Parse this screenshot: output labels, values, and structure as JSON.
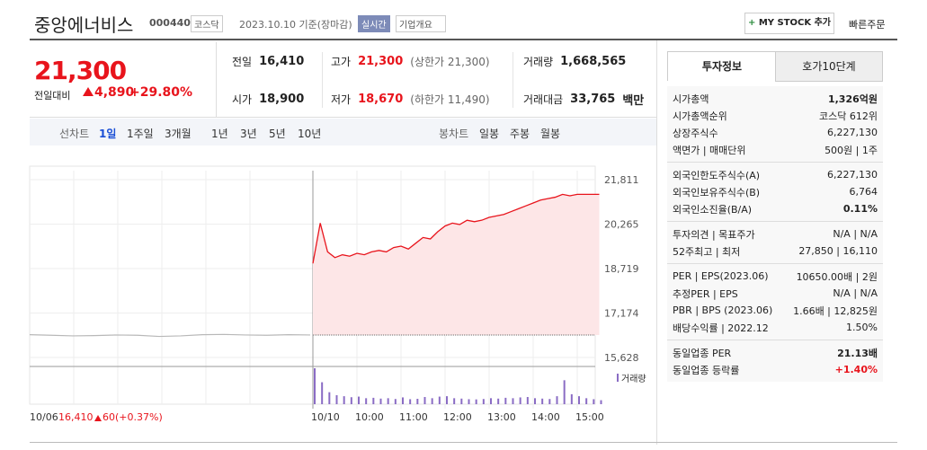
{
  "header": {
    "name": "중앙에너비스",
    "code": "000440",
    "market": "코스닥",
    "date": "2023.10.10 기준(장마감)",
    "realtime": "실시간",
    "company_info": "기업개요",
    "my_stock": "MY STOCK 추가",
    "quick_order": "빠른주문"
  },
  "quote": {
    "price": "21,300",
    "change_label": "전일대비",
    "change": "4,890",
    "change_rate": "+29.80%",
    "stats": [
      {
        "label": "전일",
        "value": "16,410"
      },
      {
        "label": "고가",
        "value": "21,300",
        "extra": "(상한가 21,300)"
      },
      {
        "label": "거래량",
        "value": "1,668,565"
      },
      {
        "label": "시가",
        "value": "18,900"
      },
      {
        "label": "저가",
        "value": "18,670",
        "extra": "(하한가 11,490)"
      },
      {
        "label": "거래대금",
        "value": "33,765",
        "extra": "백만"
      }
    ]
  },
  "tabs": {
    "line_label": "선차트",
    "line_periods": [
      "1일",
      "1주일",
      "3개월",
      "1년",
      "3년",
      "5년",
      "10년"
    ],
    "candle_label": "봉차트",
    "candle_periods": [
      "일봉",
      "주봉",
      "월봉"
    ]
  },
  "chart": {
    "type": "line",
    "color": "#e8141c",
    "fill": "#fde6e7",
    "prev_color": "#b8b8b8",
    "volume_color": "#8a6cc4",
    "ylim": [
      15628,
      21811
    ],
    "yticks": [
      {
        "value": 21811,
        "label": "21,811"
      },
      {
        "value": 20265,
        "label": "20,265"
      },
      {
        "value": 18719,
        "label": "18,719"
      },
      {
        "value": 17174,
        "label": "17,174"
      },
      {
        "value": 15628,
        "label": "15,628"
      }
    ],
    "xticks": [
      {
        "value": "09:00",
        "label": "10/10"
      },
      "10:00",
      "11:00",
      "12:00",
      "13:00",
      "14:00",
      "15:00"
    ],
    "prev_label": "10/06",
    "prev_close": {
      "value": 16410,
      "label": "16,410"
    },
    "prev_change": "60",
    "prev_rate": "(+0.37%)",
    "volume_label": "거래량",
    "x": [
      "09:00",
      "09:10",
      "09:20",
      "09:30",
      "09:40",
      "09:50",
      "10:00",
      "10:10",
      "10:20",
      "10:30",
      "10:40",
      "10:50",
      "11:00",
      "11:10",
      "11:20",
      "11:30",
      "11:40",
      "11:50",
      "12:00",
      "12:10",
      "12:20",
      "12:30",
      "12:40",
      "12:50",
      "13:00",
      "13:10",
      "13:20",
      "13:30",
      "13:40",
      "13:50",
      "14:00",
      "14:10",
      "14:20",
      "14:30",
      "14:40",
      "14:50",
      "15:00",
      "15:10",
      "15:20",
      "15:30"
    ],
    "values": [
      18900,
      20300,
      19300,
      19100,
      19200,
      19150,
      19250,
      19200,
      19300,
      19350,
      19300,
      19450,
      19500,
      19400,
      19600,
      19800,
      19750,
      20000,
      20200,
      20300,
      20250,
      20400,
      20350,
      20400,
      20500,
      20550,
      20600,
      20700,
      20800,
      20900,
      21000,
      21100,
      21150,
      21200,
      21300,
      21250,
      21300,
      21300,
      21300,
      21300
    ],
    "previous_day": [
      16420,
      16400,
      16380,
      16390,
      16410,
      16400,
      16360,
      16380,
      16420,
      16430,
      16410,
      16400,
      16420,
      16410
    ],
    "volume": [
      180000,
      110000,
      60000,
      45000,
      40000,
      35000,
      38000,
      30000,
      32000,
      28000,
      30000,
      26000,
      34000,
      25000,
      27000,
      36000,
      30000,
      38000,
      40000,
      30000,
      28000,
      25000,
      24000,
      26000,
      30000,
      28000,
      32000,
      30000,
      34000,
      36000,
      30000,
      28000,
      26000,
      40000,
      120000,
      50000,
      40000,
      30000,
      25000,
      20000
    ]
  },
  "invest_info": {
    "tabs": [
      "투자정보",
      "호가10단계"
    ],
    "sections": [
      [
        {
          "label": "시가총액",
          "value": "1,326억원"
        },
        {
          "label": "시가총액순위",
          "value": "코스닥 612위"
        },
        {
          "label": "상장주식수",
          "value": "6,227,130"
        },
        {
          "label": "액면가 | 매매단위",
          "value": "500원 | 1주"
        }
      ],
      [
        {
          "label": "외국인한도주식수(A)",
          "value": "6,227,130"
        },
        {
          "label": "외국인보유주식수(B)",
          "value": "6,764"
        },
        {
          "label": "외국인소진율(B/A)",
          "value": "0.11%"
        }
      ],
      [
        {
          "label": "투자의견 | 목표주가",
          "value": "N/A | N/A"
        },
        {
          "label": "52주최고 | 최저",
          "value": "27,850 | 16,110"
        }
      ],
      [
        {
          "label": "PER | EPS(2023.06)",
          "value": "10650.00배 | 2원"
        },
        {
          "label": "추정PER | EPS",
          "value": "N/A | N/A"
        },
        {
          "label": "PBR | BPS (2023.06)",
          "value": "1.66배 | 12,825원"
        },
        {
          "label": "배당수익률 | 2022.12",
          "value": "1.50%"
        }
      ],
      [
        {
          "label": "동일업종 PER",
          "value": "21.13배"
        },
        {
          "label": "동일업종 등락률",
          "value": "+1.40%"
        }
      ]
    ]
  }
}
